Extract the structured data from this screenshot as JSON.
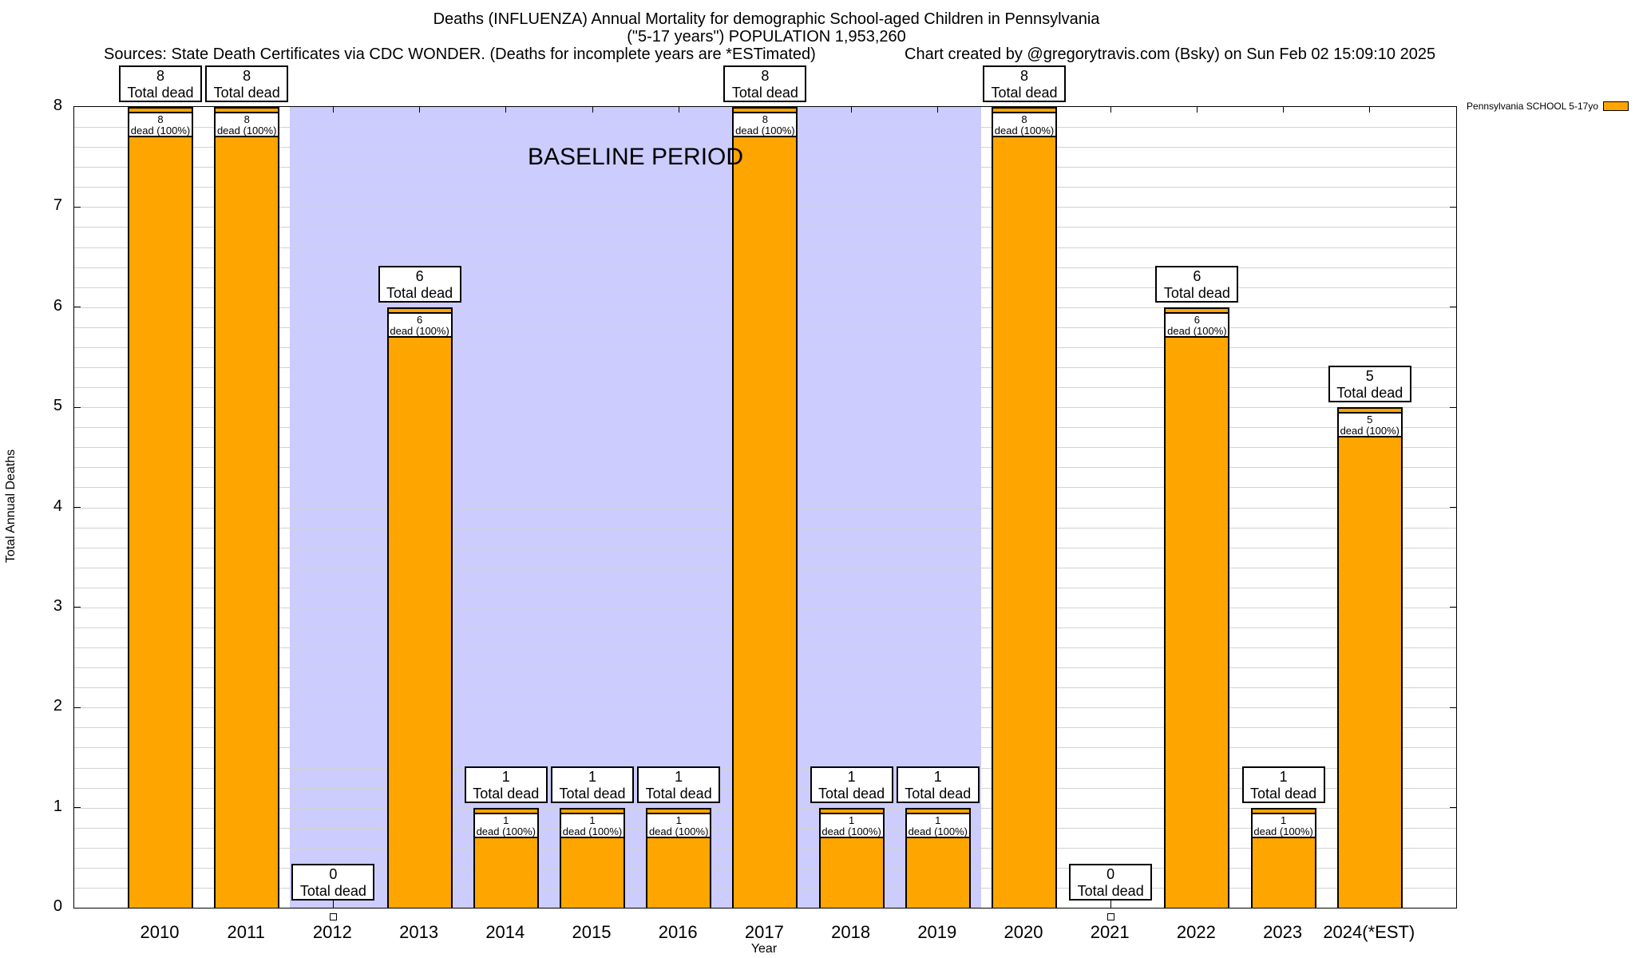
{
  "header": {
    "title_line1": "Deaths (INFLUENZA) Annual Mortality for demographic School-aged Children in Pennsylvania",
    "title_line2": "(\"5-17 years\") POPULATION 1,953,260",
    "sources": "Sources: State Death Certificates via CDC WONDER. (Deaths for incomplete years are *ESTimated)",
    "credit": "Chart created by @gregorytravis.com (Bsky) on Sun Feb 02 15:09:10 2025"
  },
  "legend": {
    "label": "Pennsylvania SCHOOL 5-17yo",
    "swatch_color": "#FFA500"
  },
  "chart_data": {
    "type": "bar",
    "title": "Deaths (INFLUENZA) Annual Mortality for demographic School-aged Children in Pennsylvania",
    "subtitle": "(\"5-17 years\") POPULATION 1,953,260",
    "categories": [
      "2010",
      "2011",
      "2012",
      "2013",
      "2014",
      "2015",
      "2016",
      "2017",
      "2018",
      "2019",
      "2020",
      "2021",
      "2022",
      "2023",
      "2024(*EST)"
    ],
    "series": [
      {
        "name": "Pennsylvania SCHOOL 5-17yo",
        "values": [
          8,
          8,
          0,
          6,
          1,
          1,
          1,
          8,
          1,
          1,
          8,
          0,
          6,
          1,
          5
        ]
      }
    ],
    "xlabel": "Year",
    "ylabel": "Total Annual Deaths",
    "ylim": [
      0,
      8
    ],
    "y_ticks": [
      0,
      1,
      2,
      3,
      4,
      5,
      6,
      7,
      8
    ],
    "y_minor_step": 0.2,
    "grid": true,
    "legend_position": "top-right",
    "bar_color": "#FFA500",
    "baseline_region": {
      "label": "BASELINE PERIOD",
      "from": "2012",
      "to": "2019",
      "color": "#CCCCFF"
    },
    "annotations": {
      "total_label": "Total dead",
      "inner_label": "dead (100%)"
    }
  }
}
